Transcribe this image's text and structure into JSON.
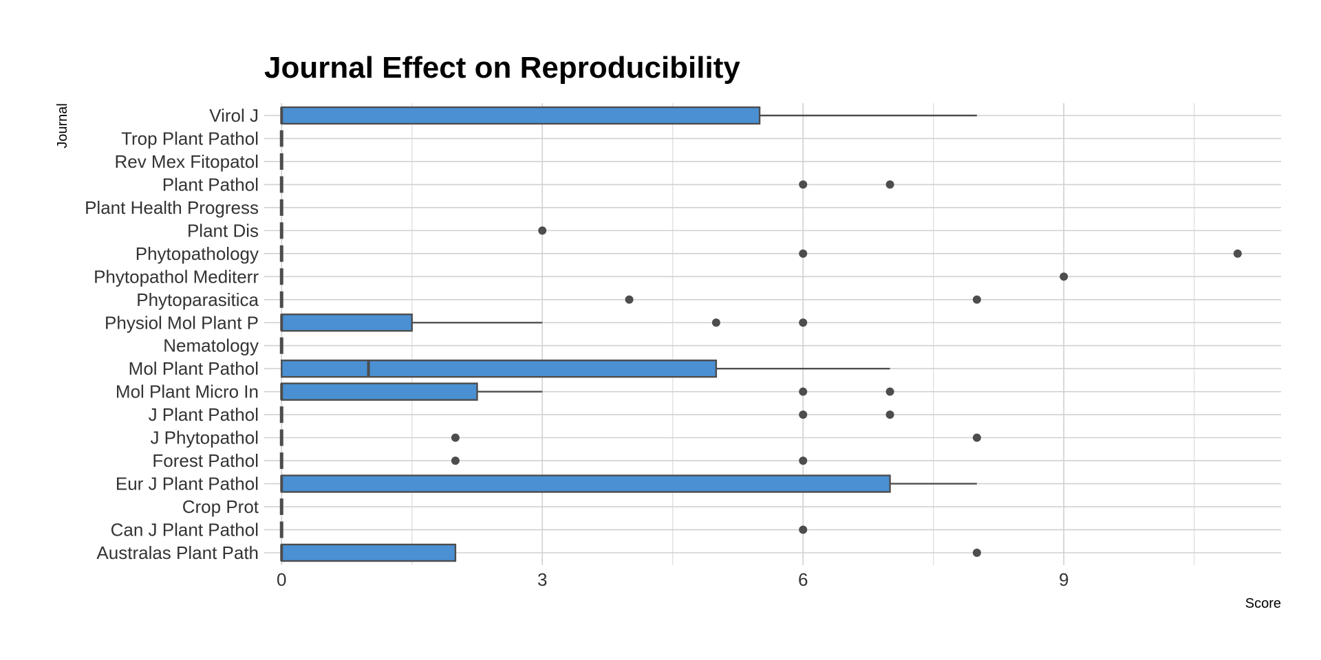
{
  "chart_data": {
    "type": "boxplot",
    "orientation": "horizontal",
    "title": "Journal Effect on Reproducibility",
    "xlabel": "Score",
    "ylabel": "Journal",
    "xlim": [
      -0.2,
      11.5
    ],
    "xticks": [
      0,
      3,
      6,
      9
    ],
    "grid": true,
    "box_color": "#4a90d2",
    "outline_color": "#4d4d4d",
    "boxes": [
      {
        "category": "Australas Plant Path",
        "min": 0,
        "q1": 0,
        "median": 0,
        "q3": 2,
        "max": 2,
        "outliers": [
          8
        ]
      },
      {
        "category": "Can J Plant Pathol",
        "min": 0,
        "q1": 0,
        "median": 0,
        "q3": 0,
        "max": 0,
        "outliers": [
          6
        ]
      },
      {
        "category": "Crop Prot",
        "min": 0,
        "q1": 0,
        "median": 0,
        "q3": 0,
        "max": 0,
        "outliers": []
      },
      {
        "category": "Eur J Plant Pathol",
        "min": 0,
        "q1": 0,
        "median": 0,
        "q3": 7,
        "max": 8,
        "outliers": []
      },
      {
        "category": "Forest Pathol",
        "min": 0,
        "q1": 0,
        "median": 0,
        "q3": 0,
        "max": 0,
        "outliers": [
          2,
          6
        ]
      },
      {
        "category": "J Phytopathol",
        "min": 0,
        "q1": 0,
        "median": 0,
        "q3": 0,
        "max": 0,
        "outliers": [
          2,
          8
        ]
      },
      {
        "category": "J Plant Pathol",
        "min": 0,
        "q1": 0,
        "median": 0,
        "q3": 0,
        "max": 0,
        "outliers": [
          6,
          7
        ]
      },
      {
        "category": "Mol Plant Micro In",
        "min": 0,
        "q1": 0,
        "median": 0,
        "q3": 2.25,
        "max": 3,
        "outliers": [
          6,
          7
        ]
      },
      {
        "category": "Mol Plant Pathol",
        "min": 0,
        "q1": 0,
        "median": 1,
        "q3": 5,
        "max": 7,
        "outliers": []
      },
      {
        "category": "Nematology",
        "min": 0,
        "q1": 0,
        "median": 0,
        "q3": 0,
        "max": 0,
        "outliers": []
      },
      {
        "category": "Physiol Mol Plant P",
        "min": 0,
        "q1": 0,
        "median": 0,
        "q3": 1.5,
        "max": 3,
        "outliers": [
          5,
          6
        ]
      },
      {
        "category": "Phytoparasitica",
        "min": 0,
        "q1": 0,
        "median": 0,
        "q3": 0,
        "max": 0,
        "outliers": [
          4,
          8
        ]
      },
      {
        "category": "Phytopathol Mediterr",
        "min": 0,
        "q1": 0,
        "median": 0,
        "q3": 0,
        "max": 0,
        "outliers": [
          9
        ]
      },
      {
        "category": "Phytopathology",
        "min": 0,
        "q1": 0,
        "median": 0,
        "q3": 0,
        "max": 0,
        "outliers": [
          6,
          11
        ]
      },
      {
        "category": "Plant Dis",
        "min": 0,
        "q1": 0,
        "median": 0,
        "q3": 0,
        "max": 0,
        "outliers": [
          3
        ]
      },
      {
        "category": "Plant Health Progress",
        "min": 0,
        "q1": 0,
        "median": 0,
        "q3": 0,
        "max": 0,
        "outliers": []
      },
      {
        "category": "Plant Pathol",
        "min": 0,
        "q1": 0,
        "median": 0,
        "q3": 0,
        "max": 0,
        "outliers": [
          6,
          7
        ]
      },
      {
        "category": "Rev Mex Fitopatol",
        "min": 0,
        "q1": 0,
        "median": 0,
        "q3": 0,
        "max": 0,
        "outliers": []
      },
      {
        "category": "Trop Plant Pathol",
        "min": 0,
        "q1": 0,
        "median": 0,
        "q3": 0,
        "max": 0,
        "outliers": []
      },
      {
        "category": "Virol J",
        "min": 0,
        "q1": 0,
        "median": 0,
        "q3": 5.5,
        "max": 8,
        "outliers": []
      }
    ]
  }
}
